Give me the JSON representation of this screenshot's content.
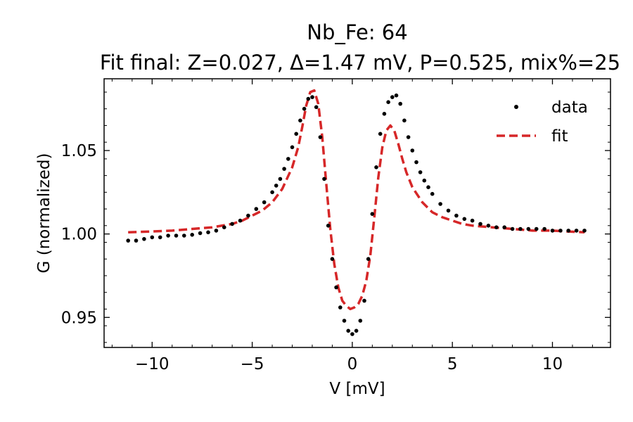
{
  "chart_data": {
    "type": "scatter",
    "title": "Nb_Fe: 64",
    "subtitle": "Fit final: Z=0.027, Δ=1.47 mV, P=0.525, mix%=25",
    "xlabel": "V [mV]",
    "ylabel": "G (normalized)",
    "xlim": [
      -12.4,
      12.9
    ],
    "ylim": [
      0.932,
      1.093
    ],
    "xticks": [
      -10,
      -5,
      0,
      5,
      10
    ],
    "xtick_labels": [
      "−10",
      "−5",
      "0",
      "5",
      "10"
    ],
    "yticks": [
      0.95,
      1.0,
      1.05
    ],
    "ytick_labels": [
      "0.95",
      "1.00",
      "1.05"
    ],
    "grid": false,
    "legend_position": "top-right",
    "series": [
      {
        "name": "data",
        "style": "points",
        "color": "#000000",
        "x": [
          -11.2,
          -10.8,
          -10.4,
          -10.0,
          -9.6,
          -9.2,
          -8.8,
          -8.4,
          -8.0,
          -7.6,
          -7.2,
          -6.8,
          -6.4,
          -6.0,
          -5.6,
          -5.2,
          -4.8,
          -4.4,
          -4.0,
          -3.8,
          -3.6,
          -3.4,
          -3.2,
          -3.0,
          -2.8,
          -2.6,
          -2.4,
          -2.2,
          -2.0,
          -1.8,
          -1.6,
          -1.4,
          -1.2,
          -1.0,
          -0.8,
          -0.6,
          -0.4,
          -0.2,
          0.0,
          0.2,
          0.4,
          0.6,
          0.8,
          1.0,
          1.2,
          1.4,
          1.6,
          1.8,
          2.0,
          2.2,
          2.4,
          2.6,
          2.8,
          3.0,
          3.2,
          3.4,
          3.6,
          3.8,
          4.0,
          4.4,
          4.8,
          5.2,
          5.6,
          6.0,
          6.4,
          6.8,
          7.2,
          7.6,
          8.0,
          8.4,
          8.8,
          9.2,
          9.6,
          10.0,
          10.4,
          10.8,
          11.2,
          11.6
        ],
        "y": [
          0.996,
          0.996,
          0.997,
          0.998,
          0.998,
          0.999,
          0.999,
          0.999,
          0.9995,
          1.0005,
          1.001,
          1.002,
          1.004,
          1.006,
          1.008,
          1.011,
          1.015,
          1.019,
          1.025,
          1.029,
          1.033,
          1.039,
          1.045,
          1.052,
          1.06,
          1.068,
          1.075,
          1.081,
          1.082,
          1.076,
          1.058,
          1.033,
          1.005,
          0.985,
          0.968,
          0.956,
          0.948,
          0.942,
          0.94,
          0.942,
          0.948,
          0.96,
          0.985,
          1.012,
          1.04,
          1.06,
          1.072,
          1.079,
          1.082,
          1.083,
          1.078,
          1.068,
          1.058,
          1.05,
          1.043,
          1.037,
          1.032,
          1.028,
          1.024,
          1.018,
          1.014,
          1.011,
          1.009,
          1.008,
          1.006,
          1.005,
          1.004,
          1.004,
          1.003,
          1.003,
          1.003,
          1.003,
          1.003,
          1.002,
          1.002,
          1.002,
          1.002,
          1.002
        ]
      },
      {
        "name": "fit",
        "style": "dashed-line",
        "color": "#d62728",
        "x": [
          -11.2,
          -10.0,
          -9.0,
          -8.0,
          -7.0,
          -6.0,
          -5.5,
          -5.0,
          -4.5,
          -4.0,
          -3.5,
          -3.0,
          -2.7,
          -2.5,
          -2.3,
          -2.1,
          -1.9,
          -1.7,
          -1.5,
          -1.3,
          -1.1,
          -0.9,
          -0.7,
          -0.5,
          -0.3,
          -0.1,
          0.1,
          0.3,
          0.5,
          0.7,
          0.9,
          1.1,
          1.3,
          1.5,
          1.7,
          1.9,
          2.1,
          2.3,
          2.5,
          2.7,
          3.0,
          3.5,
          4.0,
          4.5,
          5.0,
          5.5,
          6.0,
          7.0,
          8.0,
          9.0,
          10.0,
          11.6
        ],
        "y": [
          1.001,
          1.0015,
          1.002,
          1.003,
          1.004,
          1.006,
          1.008,
          1.011,
          1.014,
          1.019,
          1.027,
          1.04,
          1.052,
          1.064,
          1.077,
          1.085,
          1.086,
          1.078,
          1.058,
          1.03,
          1.003,
          0.982,
          0.968,
          0.96,
          0.957,
          0.955,
          0.956,
          0.958,
          0.963,
          0.972,
          0.987,
          1.01,
          1.034,
          1.052,
          1.062,
          1.065,
          1.062,
          1.054,
          1.045,
          1.037,
          1.028,
          1.019,
          1.013,
          1.01,
          1.008,
          1.006,
          1.005,
          1.004,
          1.003,
          1.002,
          1.002,
          1.001
        ]
      }
    ]
  }
}
